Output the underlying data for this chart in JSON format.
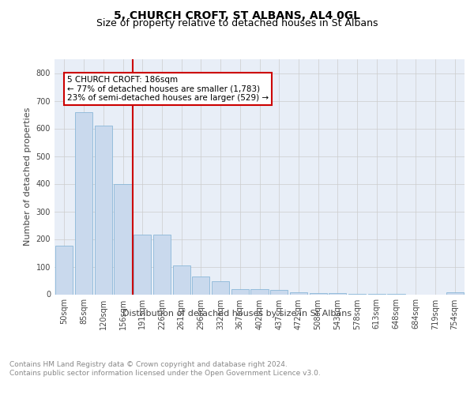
{
  "title": "5, CHURCH CROFT, ST ALBANS, AL4 0GL",
  "subtitle": "Size of property relative to detached houses in St Albans",
  "xlabel": "Distribution of detached houses by size in St Albans",
  "ylabel": "Number of detached properties",
  "categories": [
    "50sqm",
    "85sqm",
    "120sqm",
    "156sqm",
    "191sqm",
    "226sqm",
    "261sqm",
    "296sqm",
    "332sqm",
    "367sqm",
    "402sqm",
    "437sqm",
    "472sqm",
    "508sqm",
    "543sqm",
    "578sqm",
    "613sqm",
    "648sqm",
    "684sqm",
    "719sqm",
    "754sqm"
  ],
  "values": [
    175,
    660,
    610,
    400,
    215,
    215,
    105,
    63,
    48,
    20,
    20,
    17,
    8,
    5,
    3,
    2,
    2,
    1,
    0,
    0,
    8
  ],
  "bar_color": "#c9d9ed",
  "bar_edgecolor": "#7bafd4",
  "property_line_color": "#cc0000",
  "annotation_box_text": "5 CHURCH CROFT: 186sqm\n← 77% of detached houses are smaller (1,783)\n23% of semi-detached houses are larger (529) →",
  "annotation_box_color": "#cc0000",
  "ylim": [
    0,
    850
  ],
  "yticks": [
    0,
    100,
    200,
    300,
    400,
    500,
    600,
    700,
    800
  ],
  "grid_color": "#cccccc",
  "background_color": "#e8eef7",
  "footer_text": "Contains HM Land Registry data © Crown copyright and database right 2024.\nContains public sector information licensed under the Open Government Licence v3.0.",
  "title_fontsize": 10,
  "subtitle_fontsize": 9,
  "axis_label_fontsize": 8,
  "tick_fontsize": 7,
  "footer_fontsize": 6.5,
  "annotation_fontsize": 7.5
}
